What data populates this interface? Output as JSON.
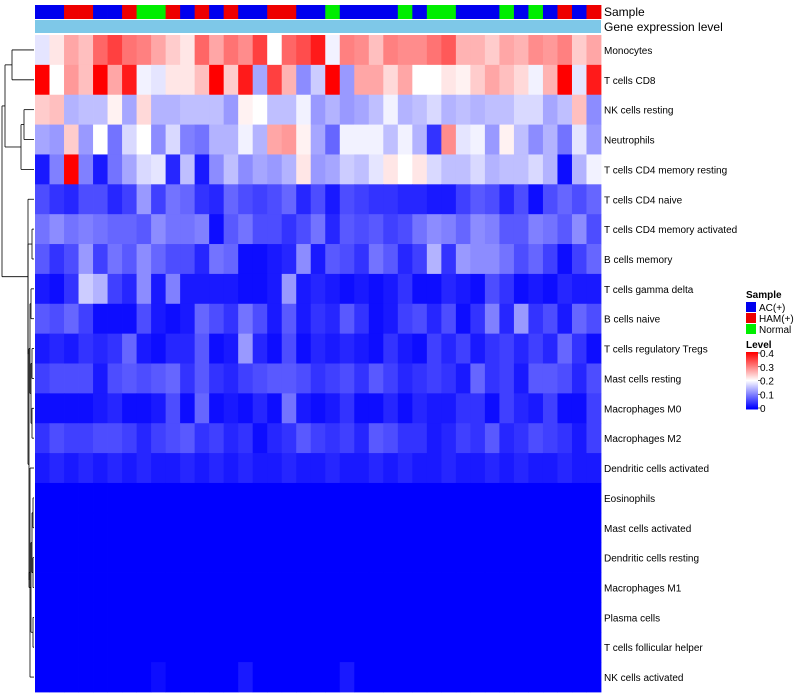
{
  "chart_data": {
    "type": "heatmap",
    "title": "",
    "annotation_tracks": [
      "Sample",
      "Gene expression level"
    ],
    "rows": [
      "Monocytes",
      "T cells CD8",
      "NK cells resting",
      "Neutrophils",
      "T cells CD4 memory resting",
      "T cells CD4 naive",
      "T cells CD4 memory activated",
      "B cells memory",
      "T cells gamma delta",
      "B cells naive",
      "T cells regulatory  Tregs",
      "Mast cells resting",
      "Macrophages M0",
      "Macrophages M2",
      "Dendritic cells activated",
      "Eosinophils",
      "Mast cells activated",
      "Dendritic cells resting",
      "Macrophages M1",
      "Plasma cells",
      "T cells follicular helper",
      "NK cells activated"
    ],
    "sample_groups": [
      "A",
      "A",
      "H",
      "H",
      "A",
      "A",
      "H",
      "N",
      "N",
      "H",
      "A",
      "H",
      "A",
      "H",
      "A",
      "A",
      "H",
      "H",
      "A",
      "A",
      "N",
      "A",
      "A",
      "A",
      "A",
      "N",
      "A",
      "N",
      "N",
      "A",
      "A",
      "A",
      "N",
      "A",
      "N",
      "A",
      "H",
      "A",
      "H"
    ],
    "sample_colors": {
      "A": "#0000ee",
      "H": "#ee0000",
      "N": "#00ee00"
    },
    "expression_track_color": "#7ec8e8",
    "values": [
      [
        0.18,
        0.22,
        0.27,
        0.25,
        0.32,
        0.35,
        0.31,
        0.3,
        0.27,
        0.24,
        0.22,
        0.32,
        0.27,
        0.31,
        0.29,
        0.35,
        0.2,
        0.32,
        0.34,
        0.38,
        0.19,
        0.3,
        0.29,
        0.25,
        0.3,
        0.29,
        0.29,
        0.31,
        0.33,
        0.26,
        0.26,
        0.24,
        0.27,
        0.26,
        0.29,
        0.28,
        0.3,
        0.24,
        0.27
      ],
      [
        0.4,
        0.2,
        0.28,
        0.25,
        0.4,
        0.27,
        0.38,
        0.19,
        0.18,
        0.22,
        0.22,
        0.25,
        0.4,
        0.24,
        0.38,
        0.13,
        0.35,
        0.26,
        0.11,
        0.16,
        0.41,
        0.12,
        0.27,
        0.27,
        0.23,
        0.27,
        0.2,
        0.2,
        0.22,
        0.21,
        0.24,
        0.27,
        0.25,
        0.23,
        0.19,
        0.26,
        0.41,
        0.18,
        0.38
      ],
      [
        0.24,
        0.25,
        0.14,
        0.15,
        0.15,
        0.21,
        0.13,
        0.23,
        0.14,
        0.14,
        0.15,
        0.15,
        0.15,
        0.12,
        0.21,
        0.2,
        0.15,
        0.15,
        0.19,
        0.12,
        0.14,
        0.12,
        0.13,
        0.15,
        0.19,
        0.14,
        0.15,
        0.17,
        0.14,
        0.15,
        0.14,
        0.15,
        0.15,
        0.17,
        0.17,
        0.13,
        0.15,
        0.25,
        0.11
      ],
      [
        0.13,
        0.12,
        0.24,
        0.12,
        0.2,
        0.09,
        0.17,
        0.2,
        0.11,
        0.17,
        0.1,
        0.09,
        0.14,
        0.14,
        0.19,
        0.14,
        0.27,
        0.28,
        0.21,
        0.13,
        0.08,
        0.19,
        0.19,
        0.19,
        0.15,
        0.19,
        0.14,
        0.04,
        0.29,
        0.18,
        0.19,
        0.12,
        0.21,
        0.15,
        0.11,
        0.14,
        0.09,
        0.18,
        0.12
      ],
      [
        0.02,
        0.1,
        0.4,
        0.1,
        0.02,
        0.09,
        0.13,
        0.17,
        0.18,
        0.03,
        0.15,
        0.02,
        0.11,
        0.15,
        0.11,
        0.13,
        0.12,
        0.14,
        0.22,
        0.12,
        0.13,
        0.16,
        0.15,
        0.18,
        0.22,
        0.2,
        0.22,
        0.17,
        0.15,
        0.15,
        0.17,
        0.14,
        0.15,
        0.15,
        0.17,
        0.14,
        0.01,
        0.14,
        0.19
      ],
      [
        0.06,
        0.04,
        0.03,
        0.06,
        0.06,
        0.03,
        0.05,
        0.12,
        0.05,
        0.09,
        0.08,
        0.04,
        0.03,
        0.08,
        0.06,
        0.05,
        0.06,
        0.08,
        0.03,
        0.06,
        0.02,
        0.06,
        0.05,
        0.04,
        0.04,
        0.03,
        0.03,
        0.02,
        0.02,
        0.05,
        0.07,
        0.06,
        0.03,
        0.06,
        0.01,
        0.06,
        0.08,
        0.06,
        0.08
      ],
      [
        0.09,
        0.11,
        0.09,
        0.1,
        0.09,
        0.08,
        0.08,
        0.07,
        0.11,
        0.09,
        0.09,
        0.1,
        0.01,
        0.07,
        0.09,
        0.06,
        0.06,
        0.04,
        0.06,
        0.09,
        0.03,
        0.07,
        0.06,
        0.07,
        0.05,
        0.06,
        0.09,
        0.11,
        0.1,
        0.08,
        0.11,
        0.1,
        0.07,
        0.07,
        0.1,
        0.09,
        0.07,
        0.11,
        0.06
      ],
      [
        0.07,
        0.04,
        0.06,
        0.12,
        0.05,
        0.09,
        0.07,
        0.11,
        0.08,
        0.06,
        0.06,
        0.03,
        0.09,
        0.08,
        0.01,
        0.01,
        0.02,
        0.03,
        0.11,
        0.02,
        0.07,
        0.06,
        0.04,
        0.09,
        0.07,
        0.03,
        0.05,
        0.14,
        0.04,
        0.12,
        0.11,
        0.11,
        0.09,
        0.06,
        0.08,
        0.05,
        0.01,
        0.05,
        0.08
      ],
      [
        0.02,
        0.01,
        0.04,
        0.16,
        0.14,
        0.05,
        0.03,
        0.11,
        0.02,
        0.1,
        0.02,
        0.02,
        0.02,
        0.02,
        0.01,
        0.01,
        0.02,
        0.12,
        0.02,
        0.03,
        0.02,
        0.01,
        0.02,
        0.01,
        0.02,
        0.04,
        0.01,
        0.01,
        0.03,
        0.02,
        0.01,
        0.06,
        0.04,
        0.01,
        0.02,
        0.01,
        0.03,
        0.02,
        0.02
      ],
      [
        0.07,
        0.06,
        0.08,
        0.05,
        0.01,
        0.01,
        0.01,
        0.06,
        0.02,
        0.01,
        0.02,
        0.08,
        0.06,
        0.04,
        0.09,
        0.06,
        0.02,
        0.07,
        0.02,
        0.04,
        0.03,
        0.07,
        0.04,
        0.01,
        0.02,
        0.05,
        0.06,
        0.03,
        0.06,
        0.01,
        0.04,
        0.1,
        0.03,
        0.12,
        0.04,
        0.06,
        0.02,
        0.08,
        0.06
      ],
      [
        0.02,
        0.03,
        0.02,
        0.04,
        0.03,
        0.04,
        0.08,
        0.02,
        0.01,
        0.03,
        0.03,
        0.07,
        0.01,
        0.02,
        0.12,
        0.03,
        0.01,
        0.06,
        0.01,
        0.03,
        0.02,
        0.03,
        0.02,
        0.01,
        0.04,
        0.02,
        0.01,
        0.05,
        0.03,
        0.05,
        0.02,
        0.04,
        0.05,
        0.03,
        0.05,
        0.03,
        0.08,
        0.04,
        0.01
      ],
      [
        0.05,
        0.06,
        0.06,
        0.06,
        0.02,
        0.06,
        0.07,
        0.06,
        0.07,
        0.08,
        0.04,
        0.07,
        0.04,
        0.03,
        0.05,
        0.06,
        0.07,
        0.07,
        0.06,
        0.04,
        0.05,
        0.06,
        0.04,
        0.07,
        0.05,
        0.03,
        0.04,
        0.05,
        0.04,
        0.02,
        0.08,
        0.04,
        0.05,
        0.02,
        0.07,
        0.07,
        0.06,
        0.03,
        0.06
      ],
      [
        0.01,
        0.01,
        0.01,
        0.01,
        0.02,
        0.03,
        0.01,
        0.01,
        0.02,
        0.06,
        0.01,
        0.08,
        0.01,
        0.02,
        0.01,
        0.03,
        0.01,
        0.09,
        0.02,
        0.01,
        0.02,
        0.04,
        0.01,
        0.01,
        0.03,
        0.01,
        0.03,
        0.02,
        0.02,
        0.04,
        0.04,
        0.01,
        0.05,
        0.03,
        0.02,
        0.05,
        0.01,
        0.01,
        0.05
      ],
      [
        0.04,
        0.06,
        0.05,
        0.05,
        0.06,
        0.06,
        0.05,
        0.03,
        0.05,
        0.06,
        0.07,
        0.04,
        0.05,
        0.03,
        0.04,
        0.01,
        0.03,
        0.04,
        0.07,
        0.05,
        0.04,
        0.05,
        0.03,
        0.07,
        0.06,
        0.04,
        0.04,
        0.02,
        0.03,
        0.05,
        0.04,
        0.07,
        0.03,
        0.04,
        0.06,
        0.05,
        0.04,
        0.02,
        0.05
      ],
      [
        0.02,
        0.03,
        0.02,
        0.03,
        0.02,
        0.03,
        0.02,
        0.03,
        0.02,
        0.02,
        0.03,
        0.02,
        0.03,
        0.02,
        0.03,
        0.02,
        0.02,
        0.03,
        0.02,
        0.02,
        0.03,
        0.02,
        0.02,
        0.03,
        0.02,
        0.03,
        0.02,
        0.02,
        0.03,
        0.02,
        0.02,
        0.03,
        0.02,
        0.03,
        0.02,
        0.02,
        0.03,
        0.02,
        0.02
      ],
      [
        0,
        0,
        0,
        0,
        0,
        0,
        0,
        0,
        0,
        0,
        0,
        0,
        0,
        0,
        0,
        0,
        0,
        0,
        0,
        0,
        0,
        0,
        0,
        0,
        0,
        0,
        0,
        0,
        0,
        0,
        0,
        0,
        0,
        0,
        0,
        0,
        0,
        0,
        0
      ],
      [
        0,
        0,
        0,
        0,
        0,
        0,
        0,
        0,
        0,
        0,
        0,
        0,
        0,
        0,
        0,
        0,
        0,
        0,
        0,
        0,
        0,
        0,
        0,
        0,
        0,
        0,
        0,
        0,
        0,
        0,
        0,
        0,
        0,
        0,
        0,
        0,
        0,
        0,
        0
      ],
      [
        0,
        0,
        0,
        0,
        0,
        0,
        0,
        0,
        0,
        0,
        0,
        0,
        0,
        0,
        0,
        0,
        0,
        0,
        0,
        0,
        0,
        0,
        0,
        0,
        0,
        0,
        0,
        0,
        0,
        0,
        0,
        0,
        0,
        0,
        0,
        0,
        0,
        0,
        0
      ],
      [
        0,
        0,
        0,
        0,
        0,
        0,
        0,
        0,
        0,
        0,
        0,
        0,
        0,
        0,
        0,
        0,
        0,
        0,
        0,
        0,
        0,
        0,
        0,
        0,
        0,
        0,
        0,
        0,
        0,
        0,
        0,
        0,
        0,
        0,
        0,
        0,
        0,
        0,
        0
      ],
      [
        0,
        0,
        0,
        0,
        0,
        0,
        0,
        0,
        0,
        0,
        0,
        0,
        0,
        0,
        0,
        0,
        0,
        0,
        0,
        0,
        0,
        0,
        0,
        0,
        0,
        0,
        0,
        0,
        0,
        0,
        0,
        0,
        0,
        0,
        0,
        0,
        0,
        0,
        0
      ],
      [
        0,
        0,
        0,
        0,
        0,
        0,
        0,
        0,
        0,
        0,
        0,
        0,
        0,
        0,
        0,
        0,
        0,
        0,
        0,
        0,
        0,
        0,
        0,
        0,
        0,
        0,
        0,
        0,
        0,
        0,
        0,
        0,
        0,
        0,
        0,
        0,
        0,
        0,
        0
      ],
      [
        0,
        0,
        0,
        0,
        0,
        0,
        0,
        0,
        0.01,
        0,
        0,
        0,
        0,
        0,
        0.02,
        0,
        0,
        0,
        0,
        0,
        0,
        0.02,
        0,
        0,
        0,
        0,
        0,
        0,
        0,
        0,
        0,
        0,
        0,
        0,
        0,
        0,
        0,
        0,
        0
      ]
    ],
    "legend_sample_title": "Sample",
    "legend_sample_entries": [
      {
        "label": "AC(+)",
        "color": "#0000ee"
      },
      {
        "label": "HAM(+)",
        "color": "#ee0000"
      },
      {
        "label": "Normal",
        "color": "#00ee00"
      }
    ],
    "legend_level_title": "Level",
    "level_range": [
      0,
      0.4
    ],
    "level_ticks": [
      "0.4",
      "0.3",
      "0.2",
      "0.1",
      "0"
    ],
    "colorscale": [
      "#0000ff",
      "#ffffff",
      "#ff0000"
    ]
  }
}
